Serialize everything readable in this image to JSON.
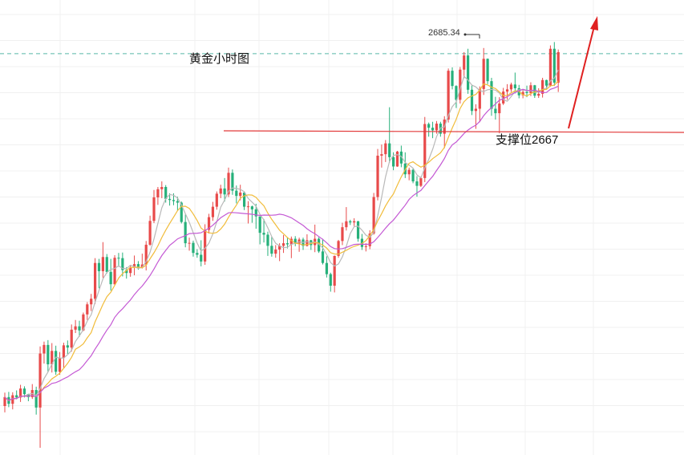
{
  "chart_data": {
    "type": "candlestick",
    "title": "黄金小时图",
    "high_label": "2685.34",
    "support_label": "支撑位2667",
    "support_level": 2667,
    "colors": {
      "up": "#e84a4a",
      "down": "#26b07a",
      "ma_fast": "#b9b9b9",
      "ma_mid": "#f1bc3a",
      "ma_slow": "#c459d4",
      "support_line": "#e23a3a",
      "dashed_line": "#57b8a7",
      "arrow": "#e02020",
      "grid": "#f0f0f0"
    },
    "candles": [
      [
        2589.2,
        2592.8,
        2587.5,
        2591.6
      ],
      [
        2591.6,
        2593.0,
        2588.9,
        2589.8
      ],
      [
        2589.8,
        2592.9,
        2588.3,
        2592.1
      ],
      [
        2592.1,
        2593.4,
        2591.0,
        2591.5
      ],
      [
        2591.5,
        2594.9,
        2590.3,
        2593.9
      ],
      [
        2593.9,
        2594.5,
        2591.5,
        2592.4
      ],
      [
        2592.4,
        2592.5,
        2590.5,
        2591.6
      ],
      [
        2591.6,
        2595.1,
        2591.1,
        2593.5
      ],
      [
        2593.5,
        2594.4,
        2586.9,
        2588.8
      ],
      [
        2588.8,
        2605.2,
        2578.0,
        2603.3
      ],
      [
        2603.3,
        2606.5,
        2600.6,
        2605.6
      ],
      [
        2605.6,
        2606.9,
        2598.3,
        2600.4
      ],
      [
        2600.4,
        2606.1,
        2598.2,
        2604.0
      ],
      [
        2604.0,
        2605.4,
        2597.6,
        2598.4
      ],
      [
        2598.4,
        2603.7,
        2597.6,
        2602.1
      ],
      [
        2602.1,
        2606.2,
        2599.5,
        2605.5
      ],
      [
        2605.5,
        2606.8,
        2603.2,
        2604.9
      ],
      [
        2604.9,
        2611.1,
        2603.8,
        2609.7
      ],
      [
        2609.7,
        2612.3,
        2608.8,
        2610.6
      ],
      [
        2610.6,
        2612.1,
        2607.8,
        2609.5
      ],
      [
        2609.5,
        2614.3,
        2609.3,
        2613.8
      ],
      [
        2613.8,
        2617.1,
        2612.3,
        2616.5
      ],
      [
        2616.5,
        2619.3,
        2614.7,
        2618.0
      ],
      [
        2618.0,
        2628.9,
        2616.6,
        2627.6
      ],
      [
        2627.6,
        2628.7,
        2620.8,
        2625.4
      ],
      [
        2625.4,
        2633.2,
        2623.6,
        2629.2
      ],
      [
        2629.2,
        2630.0,
        2624.8,
        2625.2
      ],
      [
        2625.2,
        2628.7,
        2620.2,
        2621.9
      ],
      [
        2621.9,
        2629.7,
        2621.6,
        2629.0
      ],
      [
        2629.0,
        2630.3,
        2626.6,
        2628.9
      ],
      [
        2628.9,
        2630.4,
        2624.0,
        2625.7
      ],
      [
        2625.7,
        2626.5,
        2623.4,
        2624.9
      ],
      [
        2624.9,
        2627.1,
        2623.9,
        2626.4
      ],
      [
        2626.4,
        2629.6,
        2624.3,
        2627.3
      ],
      [
        2627.3,
        2628.1,
        2625.8,
        2626.4
      ],
      [
        2626.4,
        2630.1,
        2626.1,
        2627.2
      ],
      [
        2627.2,
        2633.5,
        2625.6,
        2632.5
      ],
      [
        2632.5,
        2640.3,
        2632.2,
        2638.9
      ],
      [
        2638.9,
        2647.2,
        2638.3,
        2645.2
      ],
      [
        2645.2,
        2648.0,
        2643.2,
        2647.4
      ],
      [
        2647.4,
        2649.5,
        2645.0,
        2648.0
      ],
      [
        2648.0,
        2648.5,
        2643.8,
        2644.8
      ],
      [
        2644.8,
        2646.3,
        2643.0,
        2644.5
      ],
      [
        2644.5,
        2646.3,
        2643.1,
        2644.2
      ],
      [
        2644.2,
        2645.4,
        2641.7,
        2643.8
      ],
      [
        2643.8,
        2644.1,
        2638.2,
        2638.6
      ],
      [
        2638.6,
        2640.6,
        2631.8,
        2632.9
      ],
      [
        2632.9,
        2634.4,
        2630.9,
        2633.0
      ],
      [
        2633.0,
        2633.6,
        2629.3,
        2630.3
      ],
      [
        2630.3,
        2631.3,
        2629.0,
        2629.8
      ],
      [
        2629.8,
        2633.7,
        2626.7,
        2628.0
      ],
      [
        2628.0,
        2638.0,
        2627.1,
        2636.5
      ],
      [
        2636.5,
        2640.8,
        2635.5,
        2639.9
      ],
      [
        2639.9,
        2644.0,
        2638.9,
        2642.7
      ],
      [
        2642.7,
        2646.8,
        2641.9,
        2646.2
      ],
      [
        2646.2,
        2648.6,
        2645.0,
        2647.6
      ],
      [
        2647.6,
        2650.4,
        2644.1,
        2646.0
      ],
      [
        2646.0,
        2653.2,
        2645.3,
        2651.8
      ],
      [
        2651.8,
        2652.7,
        2645.9,
        2647.0
      ],
      [
        2647.0,
        2648.4,
        2643.6,
        2645.6
      ],
      [
        2645.6,
        2648.6,
        2644.4,
        2646.5
      ],
      [
        2646.5,
        2646.8,
        2641.8,
        2642.7
      ],
      [
        2642.7,
        2644.2,
        2638.2,
        2642.8
      ],
      [
        2642.8,
        2643.0,
        2638.4,
        2642.0
      ],
      [
        2642.0,
        2643.5,
        2636.8,
        2640.1
      ],
      [
        2640.1,
        2640.1,
        2632.6,
        2635.7
      ],
      [
        2635.7,
        2639.4,
        2633.1,
        2635.2
      ],
      [
        2635.2,
        2636.0,
        2629.5,
        2632.2
      ],
      [
        2632.2,
        2634.6,
        2629.3,
        2630.1
      ],
      [
        2630.1,
        2632.4,
        2629.0,
        2631.2
      ],
      [
        2631.2,
        2632.9,
        2628.1,
        2632.2
      ],
      [
        2632.2,
        2635.1,
        2630.3,
        2632.9
      ],
      [
        2632.9,
        2634.5,
        2631.5,
        2632.6
      ],
      [
        2632.6,
        2634.7,
        2628.9,
        2634.1
      ],
      [
        2634.1,
        2634.8,
        2632.1,
        2632.8
      ],
      [
        2632.8,
        2634.4,
        2630.6,
        2633.9
      ],
      [
        2633.9,
        2634.4,
        2631.1,
        2632.2
      ],
      [
        2632.2,
        2635.3,
        2632.0,
        2633.7
      ],
      [
        2633.7,
        2633.8,
        2631.1,
        2632.4
      ],
      [
        2632.4,
        2637.9,
        2630.5,
        2634.1
      ],
      [
        2634.1,
        2634.5,
        2630.3,
        2630.7
      ],
      [
        2630.7,
        2634.1,
        2627.2,
        2627.6
      ],
      [
        2627.6,
        2629.4,
        2623.7,
        2624.6
      ],
      [
        2624.6,
        2625.0,
        2619.9,
        2621.5
      ],
      [
        2621.5,
        2629.6,
        2619.7,
        2629.5
      ],
      [
        2629.5,
        2633.8,
        2629.0,
        2633.5
      ],
      [
        2633.5,
        2638.4,
        2632.4,
        2637.2
      ],
      [
        2637.2,
        2642.6,
        2636.3,
        2638.8
      ],
      [
        2638.8,
        2639.2,
        2637.8,
        2638.5
      ],
      [
        2638.5,
        2639.6,
        2637.5,
        2638.8
      ],
      [
        2638.8,
        2638.9,
        2633.3,
        2634.1
      ],
      [
        2634.1,
        2635.4,
        2631.1,
        2631.9
      ],
      [
        2631.9,
        2632.9,
        2630.7,
        2632.1
      ],
      [
        2632.1,
        2636.4,
        2631.3,
        2635.5
      ],
      [
        2635.5,
        2646.4,
        2635.2,
        2645.3
      ],
      [
        2645.3,
        2658.2,
        2644.4,
        2656.4
      ],
      [
        2656.4,
        2659.4,
        2653.2,
        2656.8
      ],
      [
        2656.8,
        2660.6,
        2654.7,
        2659.7
      ],
      [
        2659.7,
        2669.4,
        2654.5,
        2656.0
      ],
      [
        2656.0,
        2657.3,
        2652.5,
        2653.5
      ],
      [
        2653.5,
        2657.7,
        2653.4,
        2657.5
      ],
      [
        2657.5,
        2659.1,
        2653.3,
        2654.3
      ],
      [
        2654.3,
        2657.3,
        2650.4,
        2651.4
      ],
      [
        2651.4,
        2653.2,
        2649.8,
        2652.6
      ],
      [
        2652.6,
        2652.9,
        2649.0,
        2649.5
      ],
      [
        2649.5,
        2650.9,
        2645.4,
        2648.3
      ],
      [
        2648.3,
        2650.8,
        2648.0,
        2650.4
      ],
      [
        2650.4,
        2666.8,
        2649.3,
        2664.9
      ],
      [
        2664.9,
        2665.3,
        2661.5,
        2663.9
      ],
      [
        2663.9,
        2665.5,
        2661.1,
        2663.2
      ],
      [
        2663.2,
        2665.7,
        2662.3,
        2665.0
      ],
      [
        2665.0,
        2665.5,
        2661.5,
        2662.3
      ],
      [
        2662.3,
        2667.0,
        2658.4,
        2666.1
      ],
      [
        2666.1,
        2679.8,
        2665.3,
        2679.2
      ],
      [
        2679.2,
        2680.1,
        2674.2,
        2675.1
      ],
      [
        2675.1,
        2675.3,
        2669.2,
        2671.4
      ],
      [
        2671.4,
        2680.2,
        2670.4,
        2679.5
      ],
      [
        2679.5,
        2684.2,
        2677.2,
        2683.3
      ],
      [
        2683.3,
        2685.1,
        2673.0,
        2674.1
      ],
      [
        2674.1,
        2675.4,
        2667.3,
        2668.4
      ],
      [
        2668.4,
        2670.2,
        2663.6,
        2669.0
      ],
      [
        2669.0,
        2675.0,
        2665.4,
        2674.3
      ],
      [
        2674.3,
        2685.3,
        2672.7,
        2682.4
      ],
      [
        2682.4,
        2682.5,
        2675.6,
        2676.4
      ],
      [
        2676.4,
        2677.3,
        2667.1,
        2669.0
      ],
      [
        2669.0,
        2672.2,
        2666.1,
        2667.8
      ],
      [
        2667.8,
        2672.1,
        2662.4,
        2670.4
      ],
      [
        2670.4,
        2674.6,
        2670.0,
        2673.6
      ],
      [
        2673.6,
        2675.6,
        2671.4,
        2674.2
      ],
      [
        2674.2,
        2676.0,
        2673.5,
        2675.5
      ],
      [
        2675.5,
        2678.7,
        2673.1,
        2674.5
      ],
      [
        2674.5,
        2675.4,
        2671.8,
        2672.6
      ],
      [
        2672.6,
        2674.3,
        2671.8,
        2673.5
      ],
      [
        2673.5,
        2675.2,
        2672.1,
        2673.2
      ],
      [
        2673.2,
        2676.1,
        2672.4,
        2675.3
      ],
      [
        2675.3,
        2675.4,
        2671.9,
        2672.5
      ],
      [
        2672.5,
        2674.5,
        2671.9,
        2673.0
      ],
      [
        2673.0,
        2677.3,
        2672.0,
        2676.7
      ],
      [
        2676.7,
        2676.8,
        2674.2,
        2675.2
      ],
      [
        2675.2,
        2686.0,
        2674.9,
        2685.1
      ],
      [
        2685.1,
        2686.9,
        2675.1,
        2676.0
      ],
      [
        2676.0,
        2684.9,
        2673.5,
        2684.2
      ]
    ]
  }
}
